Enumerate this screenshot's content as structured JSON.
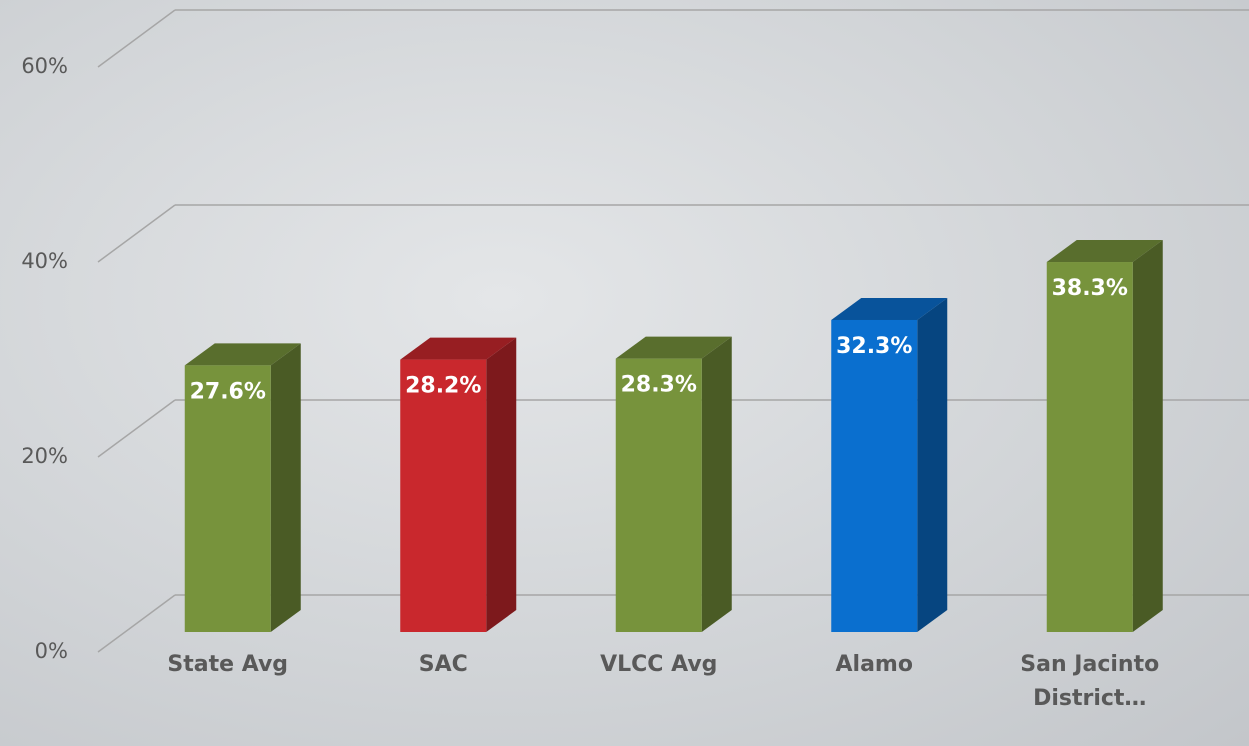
{
  "chart_data": {
    "type": "bar3d",
    "categories": [
      "State Avg",
      "SAC",
      "VLCC Avg",
      "Alamo",
      "San Jacinto District…"
    ],
    "values": [
      27.6,
      28.2,
      28.3,
      32.3,
      38.3
    ],
    "value_labels": [
      "27.6%",
      "28.2%",
      "28.3%",
      "32.3%",
      "38.3%"
    ],
    "colors": [
      "#77933c",
      "#c9282d",
      "#77933c",
      "#0a6fcf",
      "#77933c"
    ],
    "ylim": [
      0,
      60
    ],
    "yticks": [
      {
        "value": 0,
        "label": "0%"
      },
      {
        "value": 20,
        "label": "20%"
      },
      {
        "value": 40,
        "label": "40%"
      },
      {
        "value": 60,
        "label": "60%"
      }
    ],
    "grid": true
  }
}
